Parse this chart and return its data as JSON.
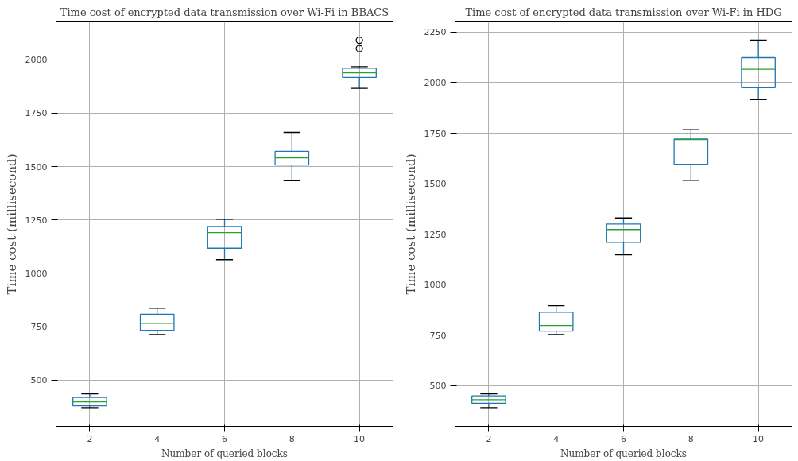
{
  "chart_data": [
    {
      "type": "box",
      "title": "Time cost of encrypted data transmission over Wi-Fi in BBACS",
      "xlabel": "Number of queried blocks",
      "ylabel": "Time cost (millisecond)",
      "categories": [
        "2",
        "4",
        "6",
        "8",
        "10"
      ],
      "boxes": [
        {
          "low": 372,
          "q1": 380,
          "median": 399,
          "q3": 419,
          "high": 436
        },
        {
          "low": 714,
          "q1": 733,
          "median": 766,
          "q3": 809,
          "high": 837
        },
        {
          "low": 1064,
          "q1": 1118,
          "median": 1191,
          "q3": 1220,
          "high": 1253
        },
        {
          "low": 1434,
          "q1": 1507,
          "median": 1541,
          "q3": 1571,
          "high": 1660
        },
        {
          "low": 1866,
          "q1": 1917,
          "median": 1939,
          "q3": 1960,
          "high": 1967,
          "outliers": [
            2052,
            2091
          ]
        }
      ],
      "ylim": [
        284,
        2177
      ],
      "yticks": [
        500,
        750,
        1000,
        1250,
        1500,
        1750,
        2000
      ],
      "grid": true
    },
    {
      "type": "box",
      "title": "Time cost of encrypted data transmission over Wi-Fi in HDG",
      "xlabel": "Number of queried blocks",
      "ylabel": "Time cost (millisecond)",
      "categories": [
        "2",
        "4",
        "6",
        "8",
        "10"
      ],
      "boxes": [
        {
          "low": 391,
          "q1": 413,
          "median": 430,
          "q3": 449,
          "high": 459
        },
        {
          "low": 753,
          "q1": 770,
          "median": 797,
          "q3": 863,
          "high": 896
        },
        {
          "low": 1148,
          "q1": 1210,
          "median": 1273,
          "q3": 1300,
          "high": 1330
        },
        {
          "low": 1517,
          "q1": 1596,
          "median": 1718,
          "q3": 1721,
          "high": 1767
        },
        {
          "low": 1916,
          "q1": 1975,
          "median": 2066,
          "q3": 2124,
          "high": 2211
        }
      ],
      "ylim": [
        298,
        2301
      ],
      "yticks": [
        500,
        750,
        1000,
        1250,
        1500,
        1750,
        2000,
        2250
      ],
      "grid": true
    }
  ]
}
